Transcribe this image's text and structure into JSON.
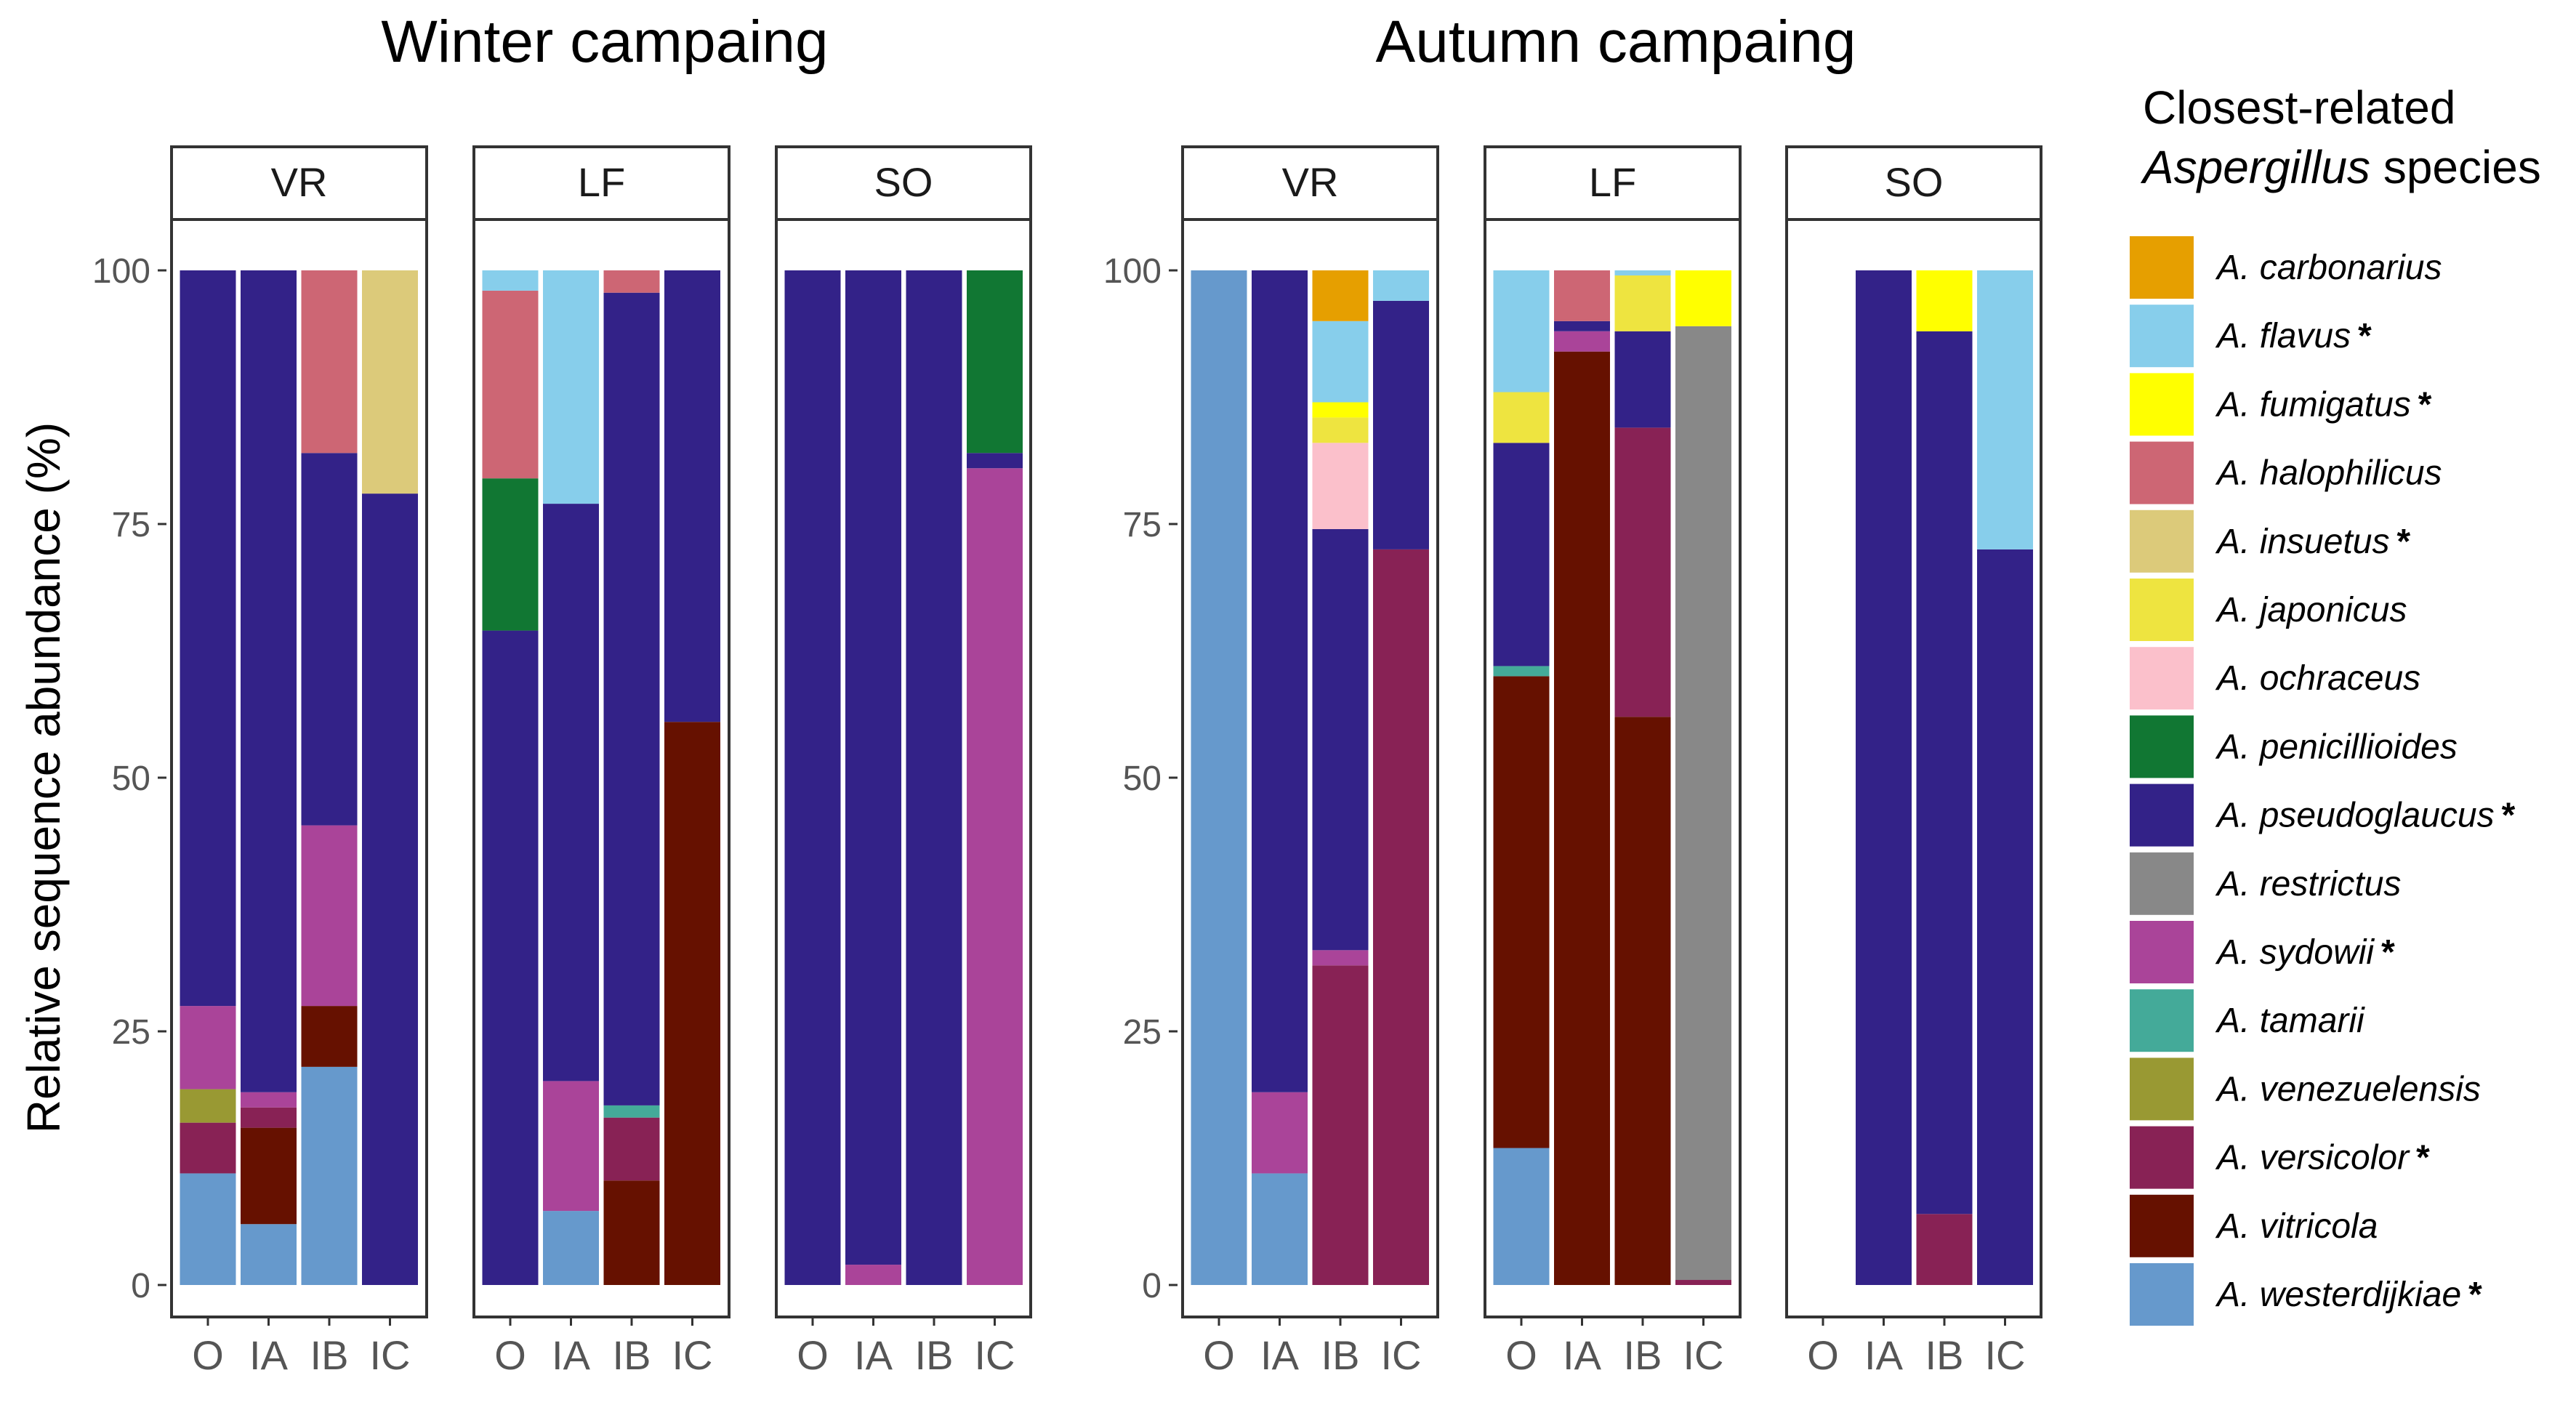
{
  "chart_data": {
    "type": "stacked-bar",
    "ylabel": "Relative sequence abundance (%)",
    "ylim": [
      0,
      100
    ],
    "yticks": [
      0,
      25,
      50,
      75,
      100
    ],
    "samples": [
      "O",
      "IA",
      "IB",
      "IC"
    ],
    "legend": {
      "title_line1": "Closest-related",
      "title_genus": "Aspergillus",
      "title_rest": " species",
      "position": "right",
      "entries": [
        {
          "key": "carbonarius",
          "label": "A. carbonarius",
          "color": "#E69F00",
          "star": ""
        },
        {
          "key": "flavus",
          "label": "A. flavus",
          "color": "#87CEEB",
          "star": "*"
        },
        {
          "key": "fumigatus",
          "label": "A. fumigatus",
          "color": "#FFFF00",
          "star": "*"
        },
        {
          "key": "halophilicus",
          "label": "A. halophilicus",
          "color": "#CD6674",
          "star": ""
        },
        {
          "key": "insuetus",
          "label": "A. insuetus",
          "color": "#DCCA7A",
          "star": "*"
        },
        {
          "key": "japonicus",
          "label": "A. japonicus",
          "color": "#EEE440",
          "star": ""
        },
        {
          "key": "ochraceus",
          "label": "A. ochraceus",
          "color": "#FBC0CB",
          "star": ""
        },
        {
          "key": "penicillioides",
          "label": "A. penicillioides",
          "color": "#117733",
          "star": ""
        },
        {
          "key": "pseudoglaucus",
          "label": "A. pseudoglaucus",
          "color": "#332288",
          "star": "*"
        },
        {
          "key": "restrictus",
          "label": "A. restrictus",
          "color": "#888888",
          "star": ""
        },
        {
          "key": "sydowii",
          "label": "A. sydowii",
          "color": "#AA4499",
          "star": "*"
        },
        {
          "key": "tamarii",
          "label": "A. tamarii",
          "color": "#44AA99",
          "star": ""
        },
        {
          "key": "venezuelensis",
          "label": "A. venezuelensis",
          "color": "#999933",
          "star": ""
        },
        {
          "key": "versicolor",
          "label": "A. versicolor",
          "color": "#882255",
          "star": "*"
        },
        {
          "key": "vitricola",
          "label": "A. vitricola",
          "color": "#661100",
          "star": ""
        },
        {
          "key": "westerdijkiae",
          "label": "A. westerdijkiae",
          "color": "#6699CC",
          "star": "*"
        }
      ]
    },
    "campaigns": [
      {
        "title": "Winter campaing",
        "panels": [
          {
            "name": "VR",
            "bars": {
              "O": [
                [
                  "westerdijkiae",
                  11
                ],
                [
                  "versicolor",
                  5
                ],
                [
                  "venezuelensis",
                  3.3
                ],
                [
                  "sydowii",
                  8.2
                ],
                [
                  "pseudoglaucus",
                  72.5
                ]
              ],
              "IA": [
                [
                  "westerdijkiae",
                  6
                ],
                [
                  "vitricola",
                  9.5
                ],
                [
                  "versicolor",
                  2
                ],
                [
                  "sydowii",
                  1.5
                ],
                [
                  "pseudoglaucus",
                  81
                ]
              ],
              "IB": [
                [
                  "westerdijkiae",
                  21.5
                ],
                [
                  "vitricola",
                  6
                ],
                [
                  "sydowii",
                  17.8
                ],
                [
                  "pseudoglaucus",
                  36.7
                ],
                [
                  "halophilicus",
                  18
                ]
              ],
              "IC": [
                [
                  "pseudoglaucus",
                  78
                ],
                [
                  "insuetus",
                  22
                ]
              ]
            }
          },
          {
            "name": "LF",
            "bars": {
              "O": [
                [
                  "pseudoglaucus",
                  64.5
                ],
                [
                  "penicillioides",
                  15
                ],
                [
                  "halophilicus",
                  18.5
                ],
                [
                  "flavus",
                  2
                ]
              ],
              "IA": [
                [
                  "westerdijkiae",
                  7.3
                ],
                [
                  "sydowii",
                  12.8
                ],
                [
                  "pseudoglaucus",
                  56.9
                ],
                [
                  "flavus",
                  23
                ]
              ],
              "IB": [
                [
                  "vitricola",
                  10.3
                ],
                [
                  "versicolor",
                  6.2
                ],
                [
                  "tamarii",
                  1.2
                ],
                [
                  "pseudoglaucus",
                  80.1
                ],
                [
                  "halophilicus",
                  2.2
                ]
              ],
              "IC": [
                [
                  "vitricola",
                  55.5
                ],
                [
                  "pseudoglaucus",
                  44.5
                ]
              ]
            }
          },
          {
            "name": "SO",
            "bars": {
              "O": [
                [
                  "pseudoglaucus",
                  100
                ]
              ],
              "IA": [
                [
                  "sydowii",
                  2
                ],
                [
                  "pseudoglaucus",
                  98
                ]
              ],
              "IB": [
                [
                  "pseudoglaucus",
                  100
                ]
              ],
              "IC": [
                [
                  "sydowii",
                  80.5
                ],
                [
                  "pseudoglaucus",
                  1.5
                ],
                [
                  "penicillioides",
                  18
                ]
              ]
            }
          }
        ]
      },
      {
        "title": "Autumn campaing",
        "panels": [
          {
            "name": "VR",
            "bars": {
              "O": [
                [
                  "westerdijkiae",
                  100
                ]
              ],
              "IA": [
                [
                  "westerdijkiae",
                  11
                ],
                [
                  "sydowii",
                  8
                ],
                [
                  "pseudoglaucus",
                  81
                ]
              ],
              "IB": [
                [
                  "versicolor",
                  31.5
                ],
                [
                  "sydowii",
                  1.5
                ],
                [
                  "pseudoglaucus",
                  41.5
                ],
                [
                  "ochraceus",
                  8.5
                ],
                [
                  "japonicus",
                  2.5
                ],
                [
                  "fumigatus",
                  1.5
                ],
                [
                  "flavus",
                  8
                ],
                [
                  "carbonarius",
                  5
                ]
              ],
              "IC": [
                [
                  "versicolor",
                  72.5
                ],
                [
                  "pseudoglaucus",
                  24.5
                ],
                [
                  "flavus",
                  3
                ]
              ]
            }
          },
          {
            "name": "LF",
            "bars": {
              "O": [
                [
                  "westerdijkiae",
                  13.5
                ],
                [
                  "vitricola",
                  46.5
                ],
                [
                  "tamarii",
                  1
                ],
                [
                  "pseudoglaucus",
                  22
                ],
                [
                  "japonicus",
                  5
                ],
                [
                  "flavus",
                  12
                ]
              ],
              "IA": [
                [
                  "vitricola",
                  92
                ],
                [
                  "sydowii",
                  2
                ],
                [
                  "pseudoglaucus",
                  1
                ],
                [
                  "halophilicus",
                  5
                ]
              ],
              "IB": [
                [
                  "vitricola",
                  56
                ],
                [
                  "versicolor",
                  28.5
                ],
                [
                  "pseudoglaucus",
                  9.5
                ],
                [
                  "japonicus",
                  5.5
                ],
                [
                  "flavus",
                  0.5
                ]
              ],
              "IC": [
                [
                  "versicolor",
                  0.5
                ],
                [
                  "restrictus",
                  94
                ],
                [
                  "fumigatus",
                  5.5
                ]
              ]
            }
          },
          {
            "name": "SO",
            "bars": {
              "IA": [
                [
                  "pseudoglaucus",
                  100
                ]
              ],
              "IB": [
                [
                  "versicolor",
                  7
                ],
                [
                  "pseudoglaucus",
                  87
                ],
                [
                  "fumigatus",
                  6
                ]
              ],
              "IC": [
                [
                  "pseudoglaucus",
                  72.5
                ],
                [
                  "flavus",
                  27.5
                ]
              ]
            }
          }
        ]
      }
    ]
  }
}
